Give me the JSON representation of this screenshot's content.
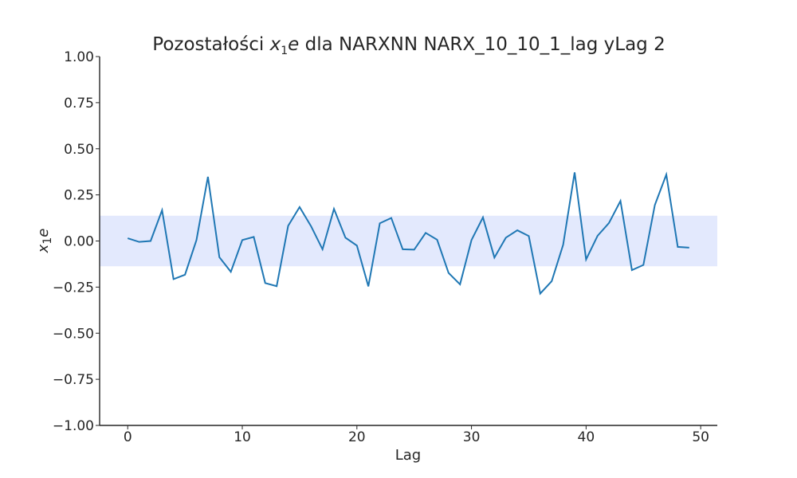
{
  "chart_data": {
    "type": "line",
    "title": {
      "prefix": "Pozostałości ",
      "var": "x",
      "sub": "1",
      "var2": "e",
      "suffix": " dla NARXNN NARX_10_10_1_lag yLag 2"
    },
    "xlabel": "Lag",
    "ylabel": {
      "var": "x",
      "sub": "1",
      "var2": "e"
    },
    "xlim": [
      -2.45,
      51.45
    ],
    "ylim": [
      -1.0,
      1.0
    ],
    "xticks": [
      0,
      10,
      20,
      30,
      40,
      50
    ],
    "xtick_labels": [
      "0",
      "10",
      "20",
      "30",
      "40",
      "50"
    ],
    "yticks": [
      1.0,
      0.75,
      0.5,
      0.25,
      0.0,
      -0.25,
      -0.5,
      -0.75,
      -1.0
    ],
    "ytick_labels": [
      "1.00",
      "0.75",
      "0.50",
      "0.25",
      "0.00",
      "−0.25",
      "−0.50",
      "−0.75",
      "−1.00"
    ],
    "confidence_band": [
      -0.137,
      0.137
    ],
    "grid": false,
    "colors": {
      "line": "#1f77b4",
      "band": "#e3e9fd",
      "axis": "#262626"
    },
    "series": [
      {
        "x": [
          0,
          1,
          2,
          3,
          4,
          5,
          6,
          7,
          8,
          9,
          10,
          11,
          12,
          13,
          14,
          15,
          16,
          17,
          18,
          19,
          20,
          21,
          22,
          23,
          24,
          25,
          26,
          27,
          28,
          29,
          30,
          31,
          32,
          33,
          34,
          35,
          36,
          37,
          38,
          39,
          40,
          41,
          42,
          43,
          44,
          45,
          46,
          47,
          48,
          49
        ],
        "values": [
          0.015,
          -0.005,
          0.0,
          0.167,
          -0.207,
          -0.183,
          0.005,
          0.348,
          -0.088,
          -0.167,
          0.005,
          0.022,
          -0.228,
          -0.245,
          0.082,
          0.184,
          0.08,
          -0.045,
          0.174,
          0.018,
          -0.025,
          -0.246,
          0.096,
          0.125,
          -0.045,
          -0.047,
          0.044,
          0.007,
          -0.173,
          -0.235,
          0.005,
          0.128,
          -0.09,
          0.018,
          0.058,
          0.027,
          -0.285,
          -0.218,
          -0.02,
          0.372,
          -0.1,
          0.028,
          0.098,
          0.217,
          -0.158,
          -0.13,
          0.195,
          0.36,
          -0.032,
          -0.036
        ]
      }
    ]
  }
}
